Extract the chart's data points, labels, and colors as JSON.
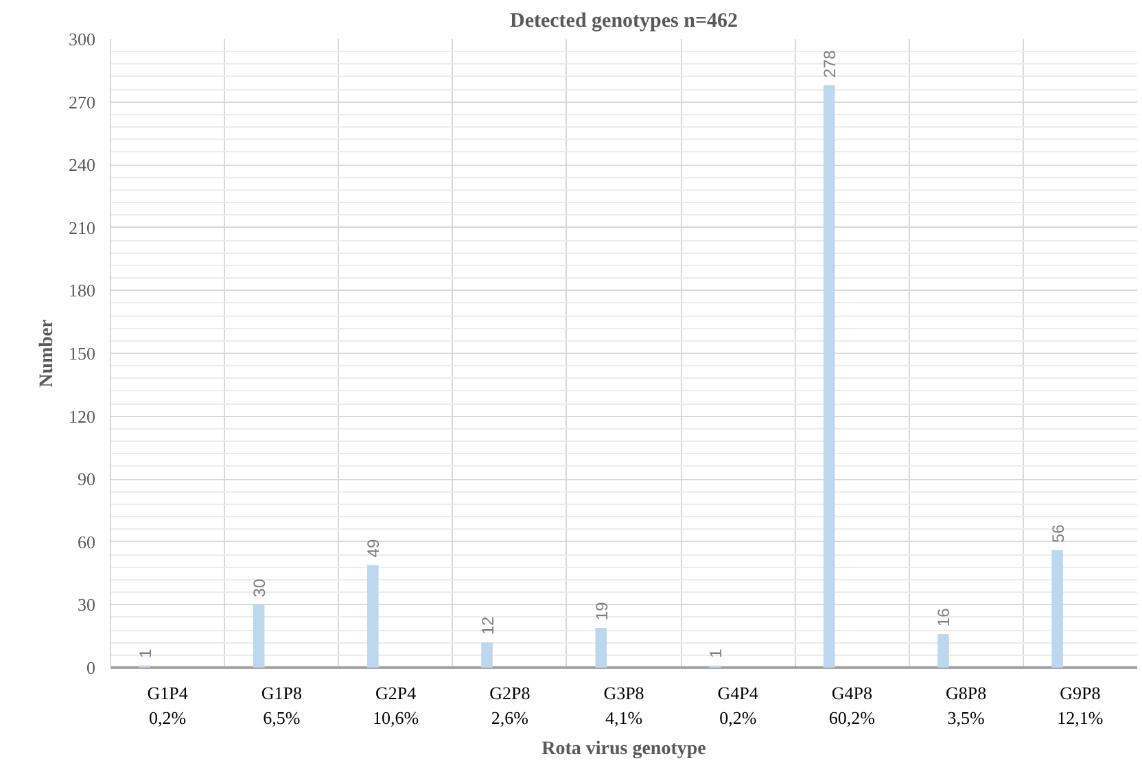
{
  "chart_data": {
    "type": "bar",
    "title": "Detected genotypes n=462",
    "xlabel": "Rota virus genotype",
    "ylabel": "Number",
    "categories": [
      "G1P4\n0,2%",
      "G1P8\n6,5%",
      "G2P4\n10,6%",
      "G2P8\n2,6%",
      "G3P8\n4,1%",
      "G4P4\n0,2%",
      "G4P8\n60,2%",
      "G8P8\n3,5%",
      "G9P8\n12,1%"
    ],
    "values": [
      1,
      30,
      49,
      12,
      19,
      1,
      278,
      16,
      56
    ],
    "color": "#bdd7ee",
    "ylim": [
      0,
      300
    ],
    "yticks": [
      0,
      30,
      60,
      90,
      120,
      150,
      180,
      210,
      240,
      270,
      300
    ],
    "grid": true,
    "data_labels": true
  }
}
